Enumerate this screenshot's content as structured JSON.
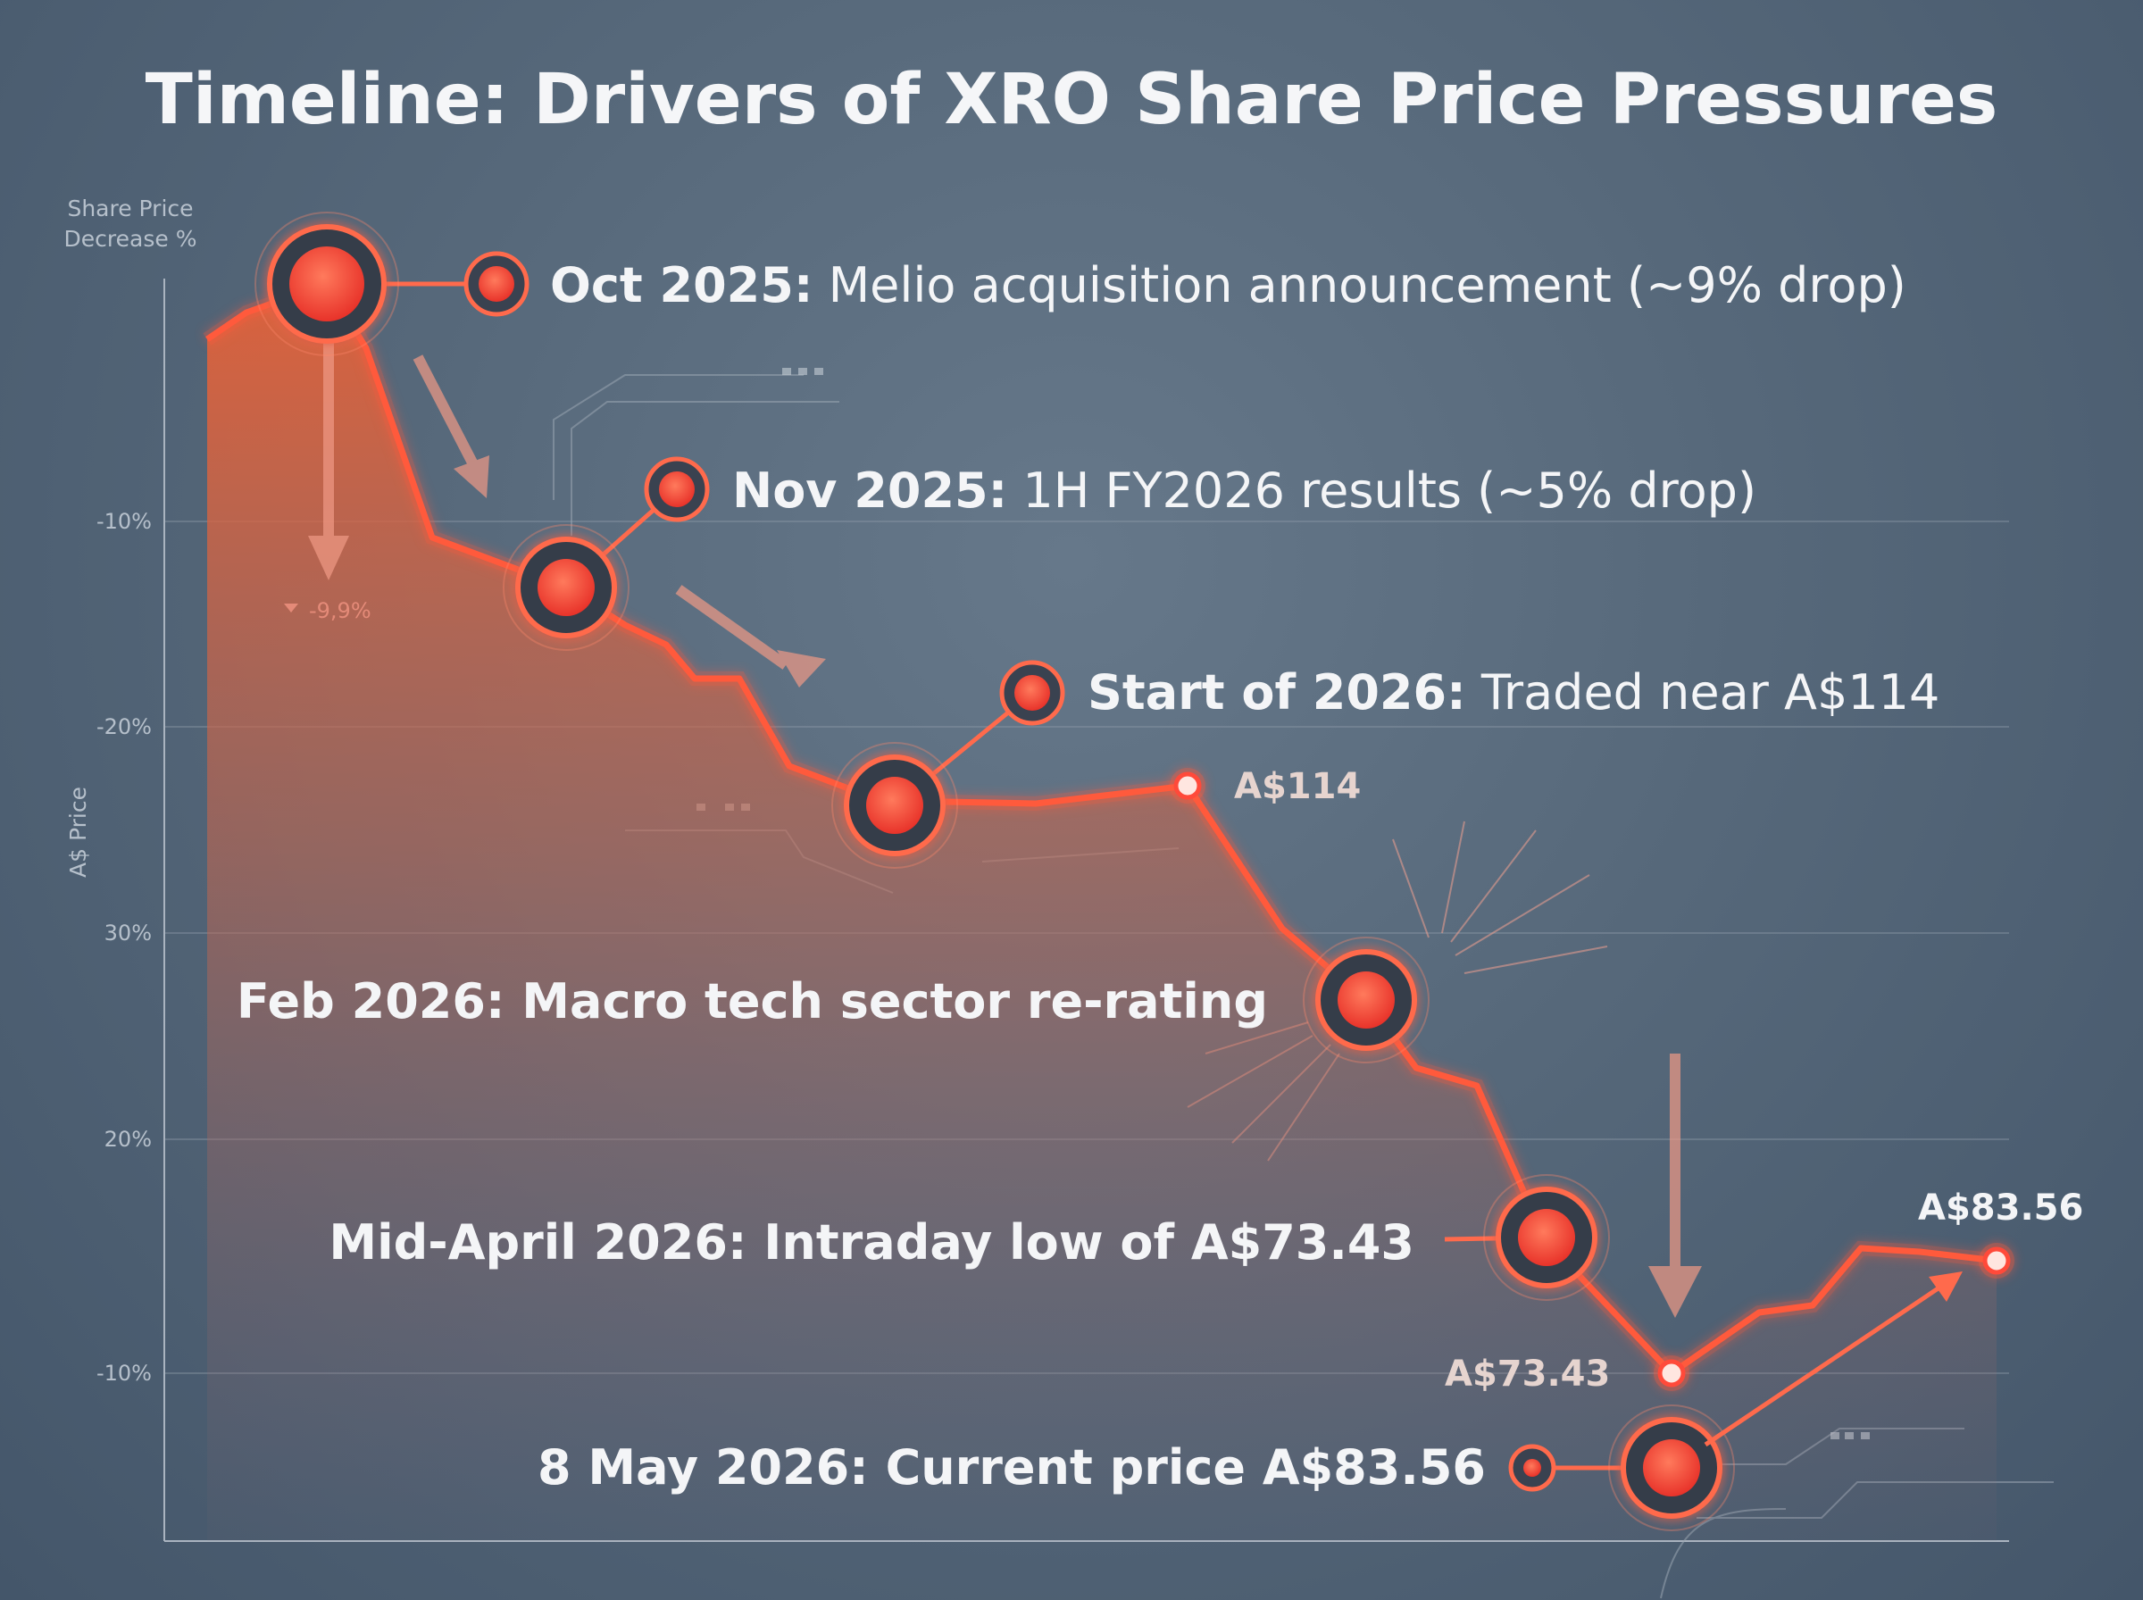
{
  "chart_data": {
    "type": "line",
    "title": "Timeline: Drivers of XRO Share Price Pressures",
    "y_axis_title": [
      "Share Price",
      "Decrease %"
    ],
    "y_axis_side_label": "A$ Price",
    "y_ticks": [
      "-10%",
      "-20%",
      "30%",
      "20%",
      "-10%"
    ],
    "x": [
      "Oct 2025",
      "Nov 2025",
      "Start of 2026",
      "Feb 2026",
      "Mid-April 2026",
      "8 May 2026"
    ],
    "series": [
      {
        "values": [
          null,
          null,
          114,
          null,
          73.43,
          83.56
        ],
        "color": "#ff4a3a"
      }
    ],
    "events": [
      {
        "date": "Oct 2025:",
        "text": " Melio acquisition announcement (~9% drop)"
      },
      {
        "date": "Nov 2025:",
        "text": " 1H FY2026 results (~5% drop)"
      },
      {
        "date": "Start of 2026:",
        "text": " Traded near A$114"
      },
      {
        "date": "",
        "text": "Feb 2026: Macro tech sector re-rating"
      },
      {
        "date": "",
        "text": "Mid-April 2026: Intraday low of A$73.43"
      },
      {
        "date": "",
        "text": "8 May 2026: Current price A$83.56"
      }
    ],
    "price_labels": [
      "A$114",
      "A$73.43",
      "A$83.56"
    ],
    "annotation": "-9,9%",
    "grid": true,
    "accent": "#ff4a3a",
    "area_color": "#e8643c"
  }
}
